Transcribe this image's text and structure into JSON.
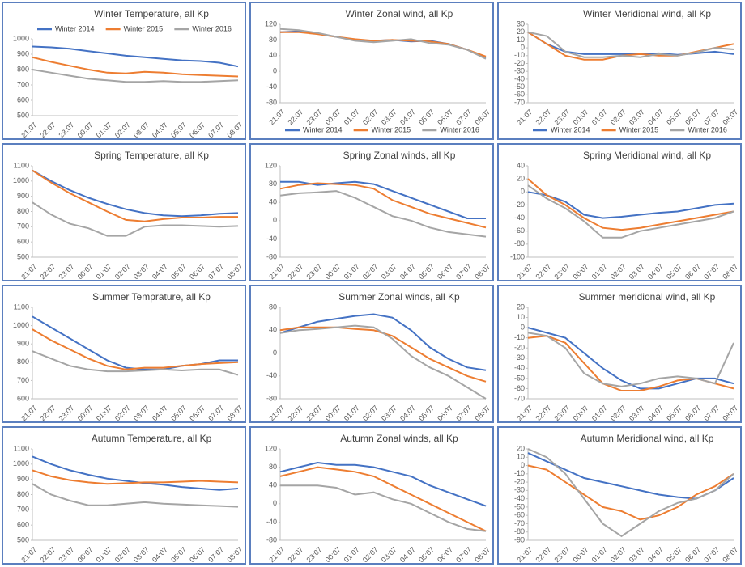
{
  "chart_data": [
    {
      "type": "line",
      "title": "Winter Temperature, all Kp",
      "legend": "top",
      "categories": [
        "21:07",
        "22:07",
        "23:07",
        "00:07",
        "01:07",
        "02:07",
        "03:07",
        "04:07",
        "05:07",
        "06:07",
        "07:07",
        "08:07"
      ],
      "ylim": [
        500,
        1000
      ],
      "yticks": [
        500,
        600,
        700,
        800,
        900,
        1000
      ],
      "series": [
        {
          "name": "Winter 2014",
          "color": "#4472c4",
          "values": [
            950,
            945,
            935,
            920,
            905,
            890,
            880,
            870,
            860,
            855,
            845,
            820
          ]
        },
        {
          "name": "Winter 2015",
          "color": "#ed7d31",
          "values": [
            880,
            850,
            825,
            800,
            780,
            775,
            785,
            780,
            770,
            765,
            760,
            755
          ]
        },
        {
          "name": "Winter 2016",
          "color": "#a5a5a5",
          "values": [
            800,
            780,
            760,
            740,
            730,
            720,
            720,
            725,
            720,
            720,
            725,
            730
          ]
        }
      ]
    },
    {
      "type": "line",
      "title": "Winter Zonal wind, all Kp",
      "legend": "bottom",
      "categories": [
        "21:07",
        "22:07",
        "23:07",
        "00:07",
        "01:07",
        "02:07",
        "03:07",
        "04:07",
        "05:07",
        "06:07",
        "07:07",
        "08:07"
      ],
      "ylim": [
        -80,
        120
      ],
      "yticks": [
        -80,
        -40,
        0,
        40,
        80,
        120
      ],
      "series": [
        {
          "name": "Winter 2014",
          "color": "#4472c4",
          "values": [
            100,
            102,
            96,
            88,
            80,
            78,
            80,
            76,
            78,
            70,
            55,
            35
          ]
        },
        {
          "name": "Winter 2015",
          "color": "#ed7d31",
          "values": [
            100,
            100,
            95,
            88,
            82,
            78,
            80,
            78,
            76,
            70,
            55,
            38
          ]
        },
        {
          "name": "Winter 2016",
          "color": "#a5a5a5",
          "values": [
            108,
            105,
            98,
            88,
            78,
            74,
            78,
            82,
            72,
            68,
            55,
            32
          ]
        }
      ]
    },
    {
      "type": "line",
      "title": "Winter Meridional wind, all Kp",
      "legend": "bottom",
      "categories": [
        "21:07",
        "22:07",
        "23:07",
        "00:07",
        "01:07",
        "02:07",
        "03:07",
        "04:07",
        "05:07",
        "06:07",
        "07:07",
        "08:07"
      ],
      "ylim": [
        -70,
        30
      ],
      "yticks": [
        -70,
        -60,
        -50,
        -40,
        -30,
        -20,
        -10,
        0,
        10,
        20,
        30
      ],
      "series": [
        {
          "name": "Winter 2014",
          "color": "#4472c4",
          "values": [
            20,
            5,
            -5,
            -8,
            -8,
            -8,
            -8,
            -7,
            -9,
            -7,
            -5,
            -8
          ]
        },
        {
          "name": "Winter 2015",
          "color": "#ed7d31",
          "values": [
            20,
            5,
            -10,
            -15,
            -15,
            -10,
            -8,
            -10,
            -10,
            -5,
            0,
            5
          ]
        },
        {
          "name": "Winter 2016",
          "color": "#a5a5a5",
          "values": [
            20,
            15,
            -5,
            -12,
            -12,
            -10,
            -12,
            -8,
            -10,
            -6,
            0,
            -2
          ]
        }
      ]
    },
    {
      "type": "line",
      "title": "Spring Temperature, all Kp",
      "categories": [
        "21:07",
        "22:07",
        "23:07",
        "00:07",
        "01:07",
        "02:07",
        "03:07",
        "04:07",
        "05:07",
        "06:07",
        "07:07",
        "08:07"
      ],
      "ylim": [
        500,
        1100
      ],
      "yticks": [
        500,
        600,
        700,
        800,
        900,
        1000,
        1100
      ],
      "series": [
        {
          "color": "#4472c4",
          "values": [
            1070,
            1000,
            940,
            890,
            850,
            815,
            790,
            775,
            770,
            775,
            785,
            790
          ]
        },
        {
          "color": "#ed7d31",
          "values": [
            1070,
            990,
            920,
            860,
            800,
            745,
            735,
            750,
            760,
            760,
            765,
            765
          ]
        },
        {
          "color": "#a5a5a5",
          "values": [
            860,
            780,
            720,
            690,
            640,
            640,
            700,
            710,
            710,
            705,
            700,
            705
          ]
        }
      ]
    },
    {
      "type": "line",
      "title": "Spring Zonal winds, all Kp",
      "categories": [
        "21:07",
        "22:07",
        "23:07",
        "00:07",
        "01:07",
        "02:07",
        "03:07",
        "04:07",
        "05:07",
        "06:07",
        "07:07",
        "08:07"
      ],
      "ylim": [
        -80,
        120
      ],
      "yticks": [
        -80,
        -40,
        0,
        40,
        80,
        120
      ],
      "series": [
        {
          "color": "#4472c4",
          "values": [
            85,
            85,
            78,
            82,
            85,
            80,
            65,
            50,
            35,
            20,
            5,
            5
          ]
        },
        {
          "color": "#ed7d31",
          "values": [
            70,
            78,
            82,
            80,
            78,
            70,
            45,
            30,
            15,
            5,
            -5,
            -15
          ]
        },
        {
          "color": "#a5a5a5",
          "values": [
            55,
            60,
            62,
            65,
            50,
            30,
            10,
            0,
            -15,
            -25,
            -30,
            -35
          ]
        }
      ]
    },
    {
      "type": "line",
      "title": "Spring Meridional wind, all Kp",
      "categories": [
        "21:07",
        "22:07",
        "23:07",
        "00:07",
        "01:07",
        "02:07",
        "03:07",
        "04:07",
        "05:07",
        "06:07",
        "07:07",
        "08:07"
      ],
      "ylim": [
        -100,
        40
      ],
      "yticks": [
        -100,
        -80,
        -60,
        -40,
        -20,
        0,
        20,
        40
      ],
      "series": [
        {
          "color": "#4472c4",
          "values": [
            0,
            -5,
            -15,
            -35,
            -40,
            -38,
            -35,
            -32,
            -30,
            -25,
            -20,
            -18
          ]
        },
        {
          "color": "#ed7d31",
          "values": [
            20,
            -5,
            -20,
            -40,
            -55,
            -58,
            -55,
            -50,
            -45,
            -40,
            -35,
            -30
          ]
        },
        {
          "color": "#a5a5a5",
          "values": [
            10,
            -10,
            -25,
            -45,
            -70,
            -70,
            -60,
            -55,
            -50,
            -45,
            -40,
            -30
          ]
        }
      ]
    },
    {
      "type": "line",
      "title": "Summer Temprature, all Kp",
      "categories": [
        "21:07",
        "22:07",
        "23:07",
        "00:07",
        "01:07",
        "02:07",
        "03:07",
        "04:07",
        "05:07",
        "06:07",
        "07:07",
        "08:07"
      ],
      "ylim": [
        600,
        1100
      ],
      "yticks": [
        600,
        700,
        800,
        900,
        1000,
        1100
      ],
      "series": [
        {
          "color": "#4472c4",
          "values": [
            1050,
            990,
            930,
            870,
            810,
            770,
            760,
            760,
            780,
            790,
            810,
            810
          ]
        },
        {
          "color": "#ed7d31",
          "values": [
            980,
            920,
            870,
            820,
            780,
            760,
            770,
            770,
            780,
            790,
            795,
            800
          ]
        },
        {
          "color": "#a5a5a5",
          "values": [
            860,
            820,
            780,
            760,
            750,
            750,
            755,
            760,
            755,
            760,
            760,
            730
          ]
        }
      ]
    },
    {
      "type": "line",
      "title": "Summer Zonal winds, all Kp",
      "categories": [
        "21:07",
        "22:07",
        "23:07",
        "00:07",
        "01:07",
        "02:07",
        "03:07",
        "04:07",
        "05:07",
        "06:07",
        "07:07",
        "08:07"
      ],
      "ylim": [
        -80,
        80
      ],
      "yticks": [
        -80,
        -40,
        0,
        40,
        80
      ],
      "series": [
        {
          "color": "#4472c4",
          "values": [
            35,
            45,
            55,
            60,
            65,
            68,
            62,
            40,
            10,
            -10,
            -25,
            -30
          ]
        },
        {
          "color": "#ed7d31",
          "values": [
            40,
            45,
            45,
            45,
            42,
            40,
            30,
            10,
            -10,
            -25,
            -40,
            -50
          ]
        },
        {
          "color": "#a5a5a5",
          "values": [
            35,
            40,
            42,
            45,
            48,
            45,
            25,
            -5,
            -25,
            -40,
            -60,
            -80
          ]
        }
      ]
    },
    {
      "type": "line",
      "title": "Summer meridional wind, all Kp",
      "categories": [
        "21:07",
        "22:07",
        "23:07",
        "00:07",
        "01:07",
        "02:07",
        "03:07",
        "04:07",
        "05:07",
        "06:07",
        "07:07",
        "08:07"
      ],
      "ylim": [
        -70,
        20
      ],
      "yticks": [
        -70,
        -60,
        -50,
        -40,
        -30,
        -20,
        -10,
        0,
        10,
        20
      ],
      "series": [
        {
          "color": "#4472c4",
          "values": [
            0,
            -5,
            -10,
            -25,
            -40,
            -52,
            -60,
            -60,
            -55,
            -50,
            -50,
            -55
          ]
        },
        {
          "color": "#ed7d31",
          "values": [
            -10,
            -8,
            -15,
            -35,
            -55,
            -62,
            -62,
            -58,
            -52,
            -50,
            -55,
            -60
          ]
        },
        {
          "color": "#a5a5a5",
          "values": [
            -5,
            -8,
            -20,
            -45,
            -55,
            -58,
            -55,
            -50,
            -48,
            -50,
            -55,
            -15
          ]
        }
      ]
    },
    {
      "type": "line",
      "title": "Autumn Temperature, all Kp",
      "categories": [
        "21:07",
        "22:07",
        "23:07",
        "00:07",
        "01:07",
        "02:07",
        "03:07",
        "04:07",
        "05:07",
        "06:07",
        "07:07",
        "08:07"
      ],
      "ylim": [
        500,
        1100
      ],
      "yticks": [
        500,
        600,
        700,
        800,
        900,
        1000,
        1100
      ],
      "series": [
        {
          "color": "#4472c4",
          "values": [
            1050,
            1000,
            960,
            930,
            905,
            890,
            875,
            865,
            850,
            840,
            830,
            840
          ]
        },
        {
          "color": "#ed7d31",
          "values": [
            960,
            920,
            895,
            880,
            870,
            875,
            880,
            880,
            885,
            890,
            885,
            880
          ]
        },
        {
          "color": "#a5a5a5",
          "values": [
            870,
            800,
            760,
            730,
            730,
            740,
            750,
            740,
            735,
            730,
            725,
            720
          ]
        }
      ]
    },
    {
      "type": "line",
      "title": "Autumn Zonal winds, all Kp",
      "categories": [
        "21:07",
        "22:07",
        "23:07",
        "00:07",
        "01:07",
        "02:07",
        "03:07",
        "04:07",
        "05:07",
        "06:07",
        "07:07",
        "08:07"
      ],
      "ylim": [
        -80,
        120
      ],
      "yticks": [
        -80,
        -40,
        0,
        40,
        80,
        120
      ],
      "series": [
        {
          "color": "#4472c4",
          "values": [
            70,
            80,
            90,
            85,
            85,
            80,
            70,
            60,
            40,
            25,
            10,
            -5
          ]
        },
        {
          "color": "#ed7d31",
          "values": [
            60,
            70,
            80,
            75,
            70,
            60,
            40,
            20,
            0,
            -20,
            -40,
            -60
          ]
        },
        {
          "color": "#a5a5a5",
          "values": [
            40,
            40,
            40,
            35,
            20,
            25,
            10,
            0,
            -20,
            -40,
            -55,
            -60
          ]
        }
      ]
    },
    {
      "type": "line",
      "title": "Autumn Meridional wind, all Kp",
      "categories": [
        "21:07",
        "22:07",
        "23:07",
        "00:07",
        "01:07",
        "02:07",
        "03:07",
        "04:07",
        "05:07",
        "06:07",
        "07:07",
        "08:07"
      ],
      "ylim": [
        -90,
        20
      ],
      "yticks": [
        -90,
        -80,
        -70,
        -60,
        -50,
        -40,
        -30,
        -20,
        -10,
        0,
        10,
        20
      ],
      "series": [
        {
          "color": "#4472c4",
          "values": [
            15,
            5,
            -5,
            -15,
            -20,
            -25,
            -30,
            -35,
            -38,
            -40,
            -30,
            -15
          ]
        },
        {
          "color": "#ed7d31",
          "values": [
            0,
            -5,
            -20,
            -35,
            -50,
            -55,
            -65,
            -60,
            -50,
            -35,
            -25,
            -10
          ]
        },
        {
          "color": "#a5a5a5",
          "values": [
            20,
            10,
            -10,
            -40,
            -70,
            -85,
            -70,
            -55,
            -45,
            -40,
            -30,
            -10
          ]
        }
      ]
    }
  ]
}
